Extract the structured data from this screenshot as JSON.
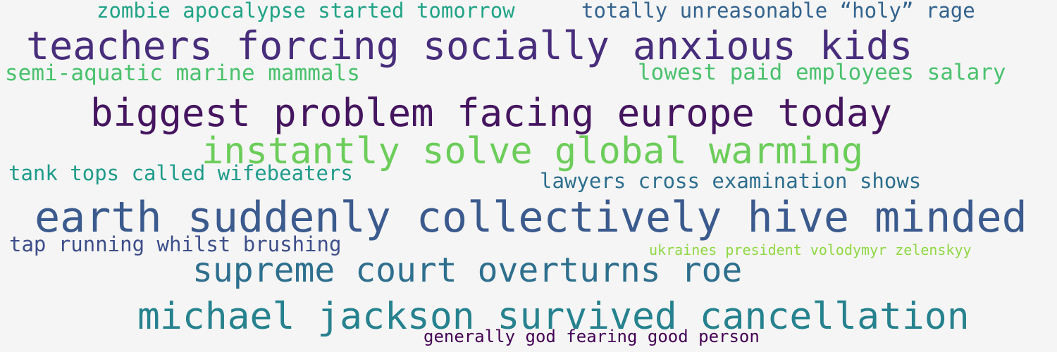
{
  "phrases": [
    {
      "text": "zombie apocalypse started tomorrow",
      "color": "#20a386"
    },
    {
      "text": "totally unreasonable “holy” rage",
      "color": "#33638d"
    },
    {
      "text": "teachers forcing socially anxious kids",
      "color": "#472d7b"
    },
    {
      "text": "semi-aquatic marine mammals",
      "color": "#4ac16d"
    },
    {
      "text": "lowest paid employees salary",
      "color": "#4ac16d"
    },
    {
      "text": "biggest problem facing europe today",
      "color": "#45155f"
    },
    {
      "text": "instantly solve global warming",
      "color": "#6ccd5a"
    },
    {
      "text": "tank tops called wifebeaters",
      "color": "#1e9b8a"
    },
    {
      "text": "lawyers cross examination shows",
      "color": "#2d6e8e"
    },
    {
      "text": "earth suddenly collectively hive minded",
      "color": "#3b5a8d"
    },
    {
      "text": "tap running whilst brushing",
      "color": "#3d4e8a"
    },
    {
      "text": "ukraines president volodymyr zelenskyy",
      "color": "#8fd744"
    },
    {
      "text": "supreme court overturns roe",
      "color": "#2e6f8e"
    },
    {
      "text": "michael jackson survived cancellation",
      "color": "#26828e"
    },
    {
      "text": "generally god fearing good person",
      "color": "#440154"
    }
  ]
}
